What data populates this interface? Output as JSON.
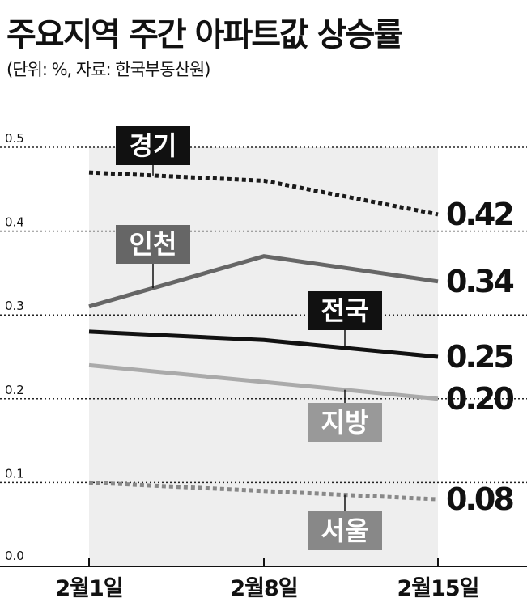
{
  "header": {
    "title": "주요지역 주간 아파트값 상승률",
    "subtitle": "(단위: %, 자료: 한국부동산원)"
  },
  "chart_data": {
    "type": "line",
    "title": "주요지역 주간 아파트값 상승률",
    "subtitle": "(단위: %, 자료: 한국부동산원)",
    "categories": [
      "2월1일",
      "2월8일",
      "2월15일"
    ],
    "ylim": [
      0,
      0.5
    ],
    "yticks": [
      "0.0",
      "0.1",
      "0.2",
      "0.3",
      "0.4",
      "0.5"
    ],
    "grid": "dotted horizontal",
    "series": [
      {
        "name": "경기",
        "values": [
          0.47,
          0.46,
          0.42
        ],
        "end_label": "0.42",
        "color": "#1a1a1a",
        "dash": true,
        "badge_color": "#111111"
      },
      {
        "name": "인천",
        "values": [
          0.31,
          0.37,
          0.34
        ],
        "end_label": "0.34",
        "color": "#666666",
        "dash": false,
        "badge_color": "#666666"
      },
      {
        "name": "전국",
        "values": [
          0.28,
          0.27,
          0.25
        ],
        "end_label": "0.25",
        "color": "#111111",
        "dash": false,
        "badge_color": "#111111"
      },
      {
        "name": "지방",
        "values": [
          0.24,
          0.22,
          0.2
        ],
        "end_label": "0.20",
        "color": "#aaaaaa",
        "dash": false,
        "badge_color": "#999999"
      },
      {
        "name": "서울",
        "values": [
          0.1,
          0.09,
          0.08
        ],
        "end_label": "0.08",
        "color": "#888888",
        "dash": true,
        "badge_color": "#888888"
      }
    ]
  }
}
